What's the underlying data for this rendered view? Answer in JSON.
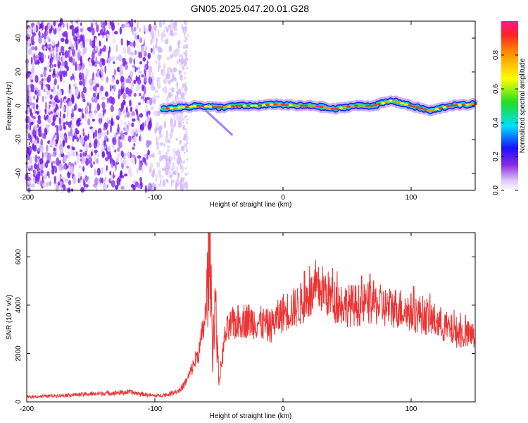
{
  "title": "GN05.2025.047.20.01.G28",
  "colors": {
    "series": "#ee3333",
    "spectro_dot": "#7a22ee",
    "frame": "#000000"
  },
  "chart_data": [
    {
      "type": "heatmap",
      "xlabel": "Height of straight line (km)",
      "ylabel": "Frequency (Hz)",
      "xlim": [
        -200,
        150
      ],
      "ylim": [
        -50,
        50
      ],
      "xticks": [
        -200,
        -100,
        0,
        100
      ],
      "yticks": [
        -40,
        -20,
        0,
        20,
        40
      ],
      "colorbar": {
        "label": "Normalized spectral amplitude",
        "range": [
          0,
          1
        ],
        "ticks": [
          "0.0",
          "0.2",
          "0.4",
          "0.6",
          "0.8"
        ],
        "tick_values": [
          0,
          0.2,
          0.4,
          0.6,
          0.8
        ]
      },
      "noise_region_x": [
        -200,
        -75
      ],
      "signal_track": {
        "x": [
          -95,
          -80,
          -65,
          -50,
          -35,
          -20,
          -5,
          10,
          25,
          40,
          55,
          70,
          85,
          100,
          115,
          130,
          150
        ],
        "y": [
          -2,
          -1,
          0,
          -1,
          0,
          0,
          1,
          0,
          0,
          -2,
          0,
          0,
          3,
          0,
          -3,
          0,
          1
        ],
        "amplitude_peak": 1.0
      }
    },
    {
      "type": "line",
      "xlabel": "Height of straight line (km)",
      "ylabel": "SNR (10 * v/v)",
      "xlim": [
        -200,
        150
      ],
      "ylim": [
        0,
        7000
      ],
      "xticks": [
        -200,
        -100,
        0,
        100
      ],
      "yticks": [
        0,
        2000,
        4000,
        6000
      ],
      "series": [
        {
          "x": [
            -200,
            -180,
            -160,
            -140,
            -120,
            -100,
            -90,
            -80,
            -75,
            -70,
            -65,
            -62,
            -60,
            -57,
            -55,
            -53,
            -50,
            -45,
            -40,
            -30,
            -20,
            -10,
            0,
            10,
            20,
            30,
            40,
            50,
            60,
            70,
            80,
            90,
            100,
            110,
            120,
            130,
            140,
            150
          ],
          "values": [
            200,
            250,
            300,
            350,
            400,
            250,
            300,
            500,
            900,
            1500,
            2200,
            3100,
            3700,
            6900,
            2000,
            4400,
            800,
            2800,
            3200,
            3400,
            3300,
            3100,
            3700,
            3900,
            4300,
            4700,
            4200,
            4000,
            4000,
            4100,
            3900,
            3900,
            3700,
            3600,
            3300,
            3000,
            2800,
            2700
          ]
        }
      ]
    }
  ]
}
